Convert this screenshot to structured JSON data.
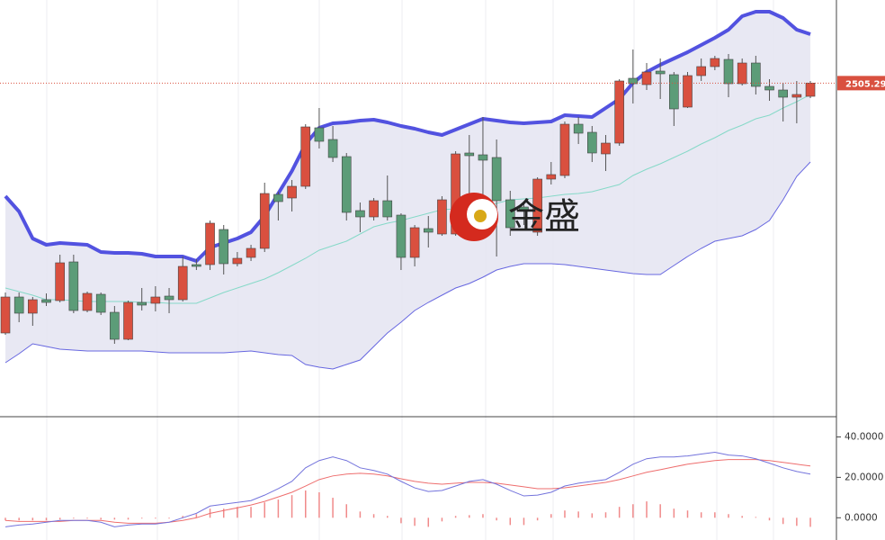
{
  "chart_data": [
    {
      "type": "candlestick",
      "ylim": [
        2394.4,
        2533
      ],
      "up_color": "#d9503f",
      "down_color": "#5c9c78",
      "open": [
        2422,
        2434,
        2428.6,
        2433.1,
        2432.8,
        2445.7,
        2429.5,
        2434.9,
        2428.9,
        2419.9,
        2432.2,
        2431.9,
        2434.3,
        2433.1,
        2444.8,
        2444.8,
        2456.5,
        2445.1,
        2447.2,
        2450.2,
        2468.2,
        2467,
        2470.9,
        2490.4,
        2486.5,
        2480.8,
        2462.8,
        2460.7,
        2466.1,
        2461.3,
        2447.2,
        2456.8,
        2455,
        2455,
        2482,
        2481.4,
        2480.5,
        2466.4,
        2464,
        2455.6,
        2473.3,
        2474.5,
        2491.6,
        2488.9,
        2481.7,
        2485.3,
        2506.9,
        2504.8,
        2509.3,
        2508.1,
        2497.3,
        2507.8,
        2510.8,
        2513.2,
        2505.1,
        2512,
        2504.2,
        2503,
        2500.6,
        2500.9
      ],
      "high": [
        2435.5,
        2435.5,
        2434,
        2435.2,
        2448.1,
        2448.1,
        2435.8,
        2435.5,
        2431,
        2432.8,
        2437,
        2437.6,
        2437,
        2447.5,
        2446.6,
        2459.5,
        2458,
        2449,
        2451.4,
        2472.1,
        2469.1,
        2473,
        2491.6,
        2497,
        2491,
        2482,
        2465.5,
        2467,
        2474.5,
        2461.9,
        2458,
        2461,
        2467.6,
        2482.6,
        2488,
        2494,
        2486.5,
        2469.4,
        2465.5,
        2473.9,
        2479,
        2492.5,
        2494,
        2491,
        2488,
        2506.6,
        2516.5,
        2512,
        2513.5,
        2509,
        2509,
        2513.5,
        2514.4,
        2515,
        2513.5,
        2514.4,
        2506.6,
        2505.4,
        2506,
        2506
      ],
      "low": [
        2421.4,
        2425.6,
        2424.4,
        2431,
        2432.2,
        2428.6,
        2428.9,
        2428,
        2418.4,
        2419.6,
        2429.5,
        2429.2,
        2428.6,
        2432.5,
        2443,
        2443,
        2441.5,
        2444.2,
        2446,
        2449,
        2459.5,
        2462.5,
        2470,
        2483.5,
        2479,
        2459.5,
        2455.6,
        2459.5,
        2459.5,
        2443,
        2444.2,
        2450.5,
        2454.4,
        2454.4,
        2461,
        2458,
        2447.5,
        2454.4,
        2458,
        2454.4,
        2471.5,
        2473.6,
        2485,
        2479,
        2476,
        2484.4,
        2498.5,
        2503,
        2500,
        2491,
        2497,
        2506,
        2509.6,
        2500.6,
        2504.5,
        2501.5,
        2499.4,
        2492.5,
        2491.9,
        2500.3
      ],
      "close": [
        2434,
        2428.6,
        2433.1,
        2432.2,
        2445.4,
        2429.5,
        2435.2,
        2428.9,
        2419.9,
        2432.2,
        2431.3,
        2434,
        2433.1,
        2444.2,
        2444.2,
        2458.6,
        2445.1,
        2446.9,
        2450.2,
        2468.5,
        2465.8,
        2470.9,
        2490.7,
        2485.9,
        2480.5,
        2462.2,
        2460.7,
        2466.1,
        2460.7,
        2447.2,
        2457.1,
        2455.6,
        2466.4,
        2481.7,
        2481.1,
        2479.6,
        2466.1,
        2457.1,
        2463.1,
        2473.3,
        2474.8,
        2491.6,
        2488.6,
        2482,
        2485.3,
        2506,
        2505.1,
        2509,
        2508.4,
        2496.7,
        2507.8,
        2510.8,
        2513.5,
        2505.1,
        2512,
        2504.2,
        2503,
        2500.6,
        2501.5,
        2505.29
      ],
      "bands": {
        "upper_color": "#5252e0",
        "middle_color": "#86d9c8",
        "lower_color": "#6767e0",
        "fill_color": "#e5e5f2",
        "upper": [
          2467.6,
          2462.5,
          2453.5,
          2451.4,
          2452,
          2451.7,
          2451.4,
          2449,
          2448.7,
          2448.7,
          2448.4,
          2447.5,
          2447.5,
          2447.5,
          2446,
          2450.5,
          2452,
          2453.5,
          2455.6,
          2461,
          2468.5,
          2476,
          2485,
          2490.4,
          2491.9,
          2492.2,
          2492.8,
          2493.1,
          2492.2,
          2491,
          2490.1,
          2488.9,
          2488,
          2489.8,
          2491.6,
          2493.4,
          2492.8,
          2492.2,
          2491.9,
          2492.2,
          2492.5,
          2494.6,
          2494.3,
          2494,
          2497,
          2500,
          2505.4,
          2509,
          2511.4,
          2513.5,
          2515.6,
          2518,
          2520.4,
          2523.1,
          2527.6,
          2529.1,
          2529.1,
          2527,
          2523.1,
          2521.6
        ],
        "middle": [
          2437,
          2435.8,
          2434.6,
          2433.1,
          2433.1,
          2432.8,
          2432.5,
          2432.5,
          2432.5,
          2432.5,
          2432.2,
          2432.2,
          2431.9,
          2431.9,
          2431.9,
          2433.7,
          2435.5,
          2437,
          2438.5,
          2440,
          2442.1,
          2444.5,
          2446.9,
          2449.6,
          2451.1,
          2452.6,
          2455,
          2457.4,
          2458.6,
          2459.5,
          2460.7,
          2461.9,
          2463.1,
          2463.4,
          2463.7,
          2464,
          2465.2,
          2466.4,
          2466.7,
          2467,
          2467.6,
          2468.2,
          2468.5,
          2469.1,
          2470.3,
          2471.5,
          2474.5,
          2476.6,
          2478.4,
          2480.5,
          2482.6,
          2485,
          2487.1,
          2489.5,
          2491.3,
          2493.4,
          2494.6,
          2497,
          2499.1,
          2501.5
        ],
        "lower": [
          2412.1,
          2415.1,
          2418.4,
          2417.5,
          2416.6,
          2416.3,
          2416,
          2416,
          2416,
          2416,
          2416,
          2415.7,
          2415.4,
          2415.4,
          2415.4,
          2415.4,
          2415.4,
          2415.7,
          2416,
          2415.4,
          2414.8,
          2414.5,
          2411.5,
          2410.6,
          2410,
          2411.5,
          2413,
          2417.5,
          2422,
          2425.6,
          2429.5,
          2432.2,
          2434.6,
          2437,
          2438.5,
          2440.6,
          2443,
          2444.2,
          2445.1,
          2445.1,
          2445.1,
          2444.8,
          2444.2,
          2443.6,
          2443,
          2442.4,
          2441.8,
          2441.5,
          2441.5,
          2444.5,
          2447.5,
          2450.2,
          2452.6,
          2453.5,
          2454.4,
          2456.5,
          2459.5,
          2466.4,
          2474.2,
          2479
        ]
      },
      "last_price_color": "#d9503f",
      "watermark": "金盛"
    },
    {
      "type": "macd",
      "ylim": [
        -11,
        50
      ],
      "yticks": [
        {
          "value": 0,
          "label": "0.0000"
        },
        {
          "value": 20,
          "label": "20.0000"
        },
        {
          "value": 40,
          "label": "40.0000"
        }
      ],
      "dif_color": "#7373dc",
      "dea_color": "#ee6e6e",
      "hist_color": "#f08a8a",
      "dif": [
        -4.5,
        -3.6,
        -3.1,
        -2.2,
        -1.3,
        -1.3,
        -1.3,
        -2.2,
        -4.5,
        -3.6,
        -3.1,
        -3.1,
        -2.2,
        0,
        2.2,
        5.8,
        6.7,
        7.6,
        8.5,
        11.2,
        14.4,
        18,
        24.7,
        28.3,
        30.1,
        28.3,
        24.7,
        23.4,
        21.6,
        18,
        14.8,
        13,
        13.5,
        15.7,
        18,
        18.9,
        16.6,
        13.5,
        10.8,
        11.2,
        12.6,
        15.7,
        17.1,
        18,
        18.9,
        22.5,
        26.5,
        29.2,
        30.1,
        30.1,
        30.6,
        31.5,
        32.4,
        31,
        30.6,
        29.2,
        27,
        24.7,
        22.9,
        21.6
      ],
      "dea": [
        -1.3,
        -1.8,
        -1.8,
        -1.8,
        -1.8,
        -1.3,
        -1.3,
        -1.3,
        -2.2,
        -2.7,
        -2.7,
        -2.7,
        -2.2,
        -1.3,
        0,
        2.2,
        3.6,
        4.9,
        6.3,
        8.1,
        10.3,
        12.6,
        15.7,
        18.9,
        20.7,
        21.6,
        22,
        21.6,
        20.7,
        19.3,
        18,
        17.1,
        16.6,
        17.1,
        17.5,
        17.5,
        17.1,
        16.2,
        15.3,
        14.4,
        14.4,
        14.8,
        15.7,
        16.6,
        17.5,
        18.9,
        20.7,
        22.5,
        23.8,
        25.2,
        26.5,
        27.4,
        28.3,
        28.8,
        28.8,
        28.8,
        28.3,
        27.4,
        26.5,
        25.6
      ],
      "histogram": [
        -1.3,
        -1.3,
        -1.3,
        -1.3,
        -0.9,
        -0.4,
        -0.4,
        -0.9,
        -0.9,
        -0.9,
        -0.4,
        -0.4,
        -0.4,
        0.9,
        1.8,
        4.5,
        4.5,
        5.4,
        5.4,
        7.6,
        9,
        11.2,
        13.5,
        12.6,
        9.9,
        6.7,
        3.1,
        1.8,
        0.9,
        -2.7,
        -4,
        -4.5,
        -1.8,
        0.9,
        1.3,
        1.8,
        -1.3,
        -3.6,
        -3.6,
        -1.3,
        1.8,
        3.6,
        3.1,
        2.2,
        2.7,
        5.4,
        6.7,
        8.1,
        6.7,
        4.5,
        3.6,
        2.7,
        2.7,
        1.8,
        0.9,
        0.4,
        -1.3,
        -3.1,
        -4,
        -4.5
      ]
    }
  ]
}
